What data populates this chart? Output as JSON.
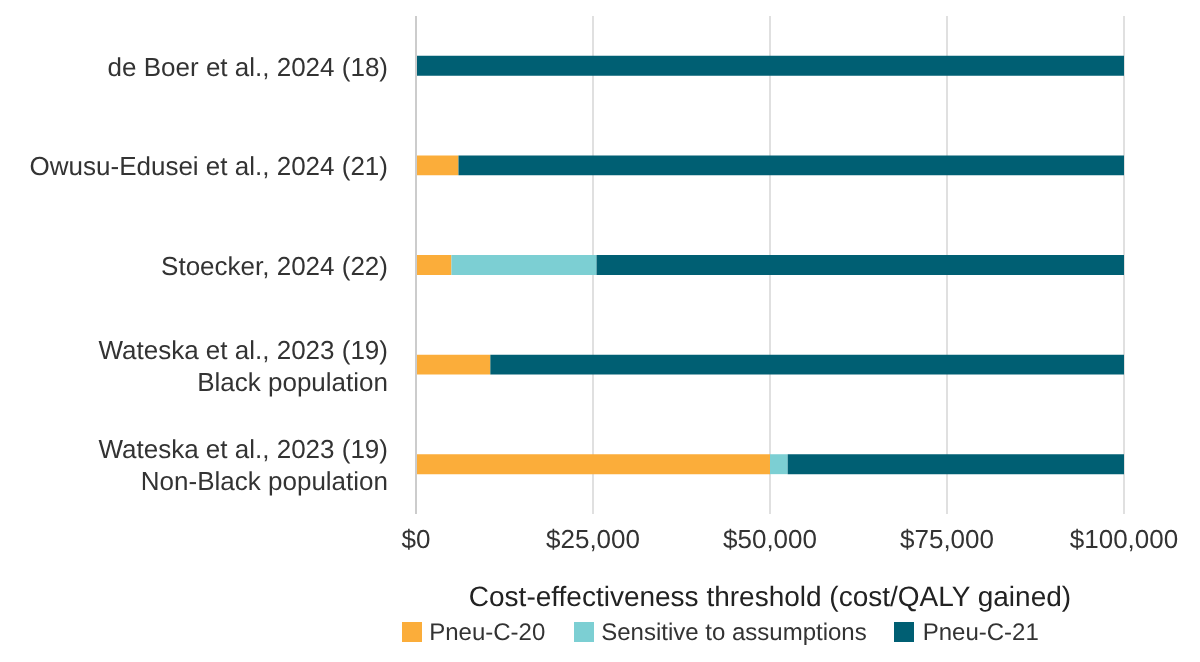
{
  "chart_data": {
    "type": "bar",
    "orientation": "horizontal",
    "stacked": true,
    "categories": [
      "de Boer et al., 2024 (18)",
      "Owusu-Edusei et al., 2024 (21)",
      "Stoecker, 2024 (22)",
      "Wateska et al., 2023 (19)\nBlack population",
      "Wateska et al., 2023 (19)\nNon-Black population"
    ],
    "series": [
      {
        "name": "Pneu-C-20",
        "color": "#fbad3a",
        "values": [
          0,
          6000,
          5000,
          10500,
          50000
        ]
      },
      {
        "name": "Sensitive to assumptions",
        "color": "#7ccfd3",
        "values": [
          0,
          0,
          20500,
          0,
          2500
        ]
      },
      {
        "name": "Pneu-C-21",
        "color": "#005f73",
        "values": [
          100000,
          94000,
          74500,
          89500,
          47500
        ]
      }
    ],
    "xlim": [
      0,
      100000
    ],
    "xticks": [
      {
        "value": 0,
        "label": "$0"
      },
      {
        "value": 25000,
        "label": "$25,000"
      },
      {
        "value": 50000,
        "label": "$50,000"
      },
      {
        "value": 75000,
        "label": "$75,000"
      },
      {
        "value": 100000,
        "label": "$100,000"
      }
    ],
    "xlabel": "Cost-effectiveness threshold (cost/QALY gained)",
    "grid": "x",
    "legend": "bottom"
  }
}
